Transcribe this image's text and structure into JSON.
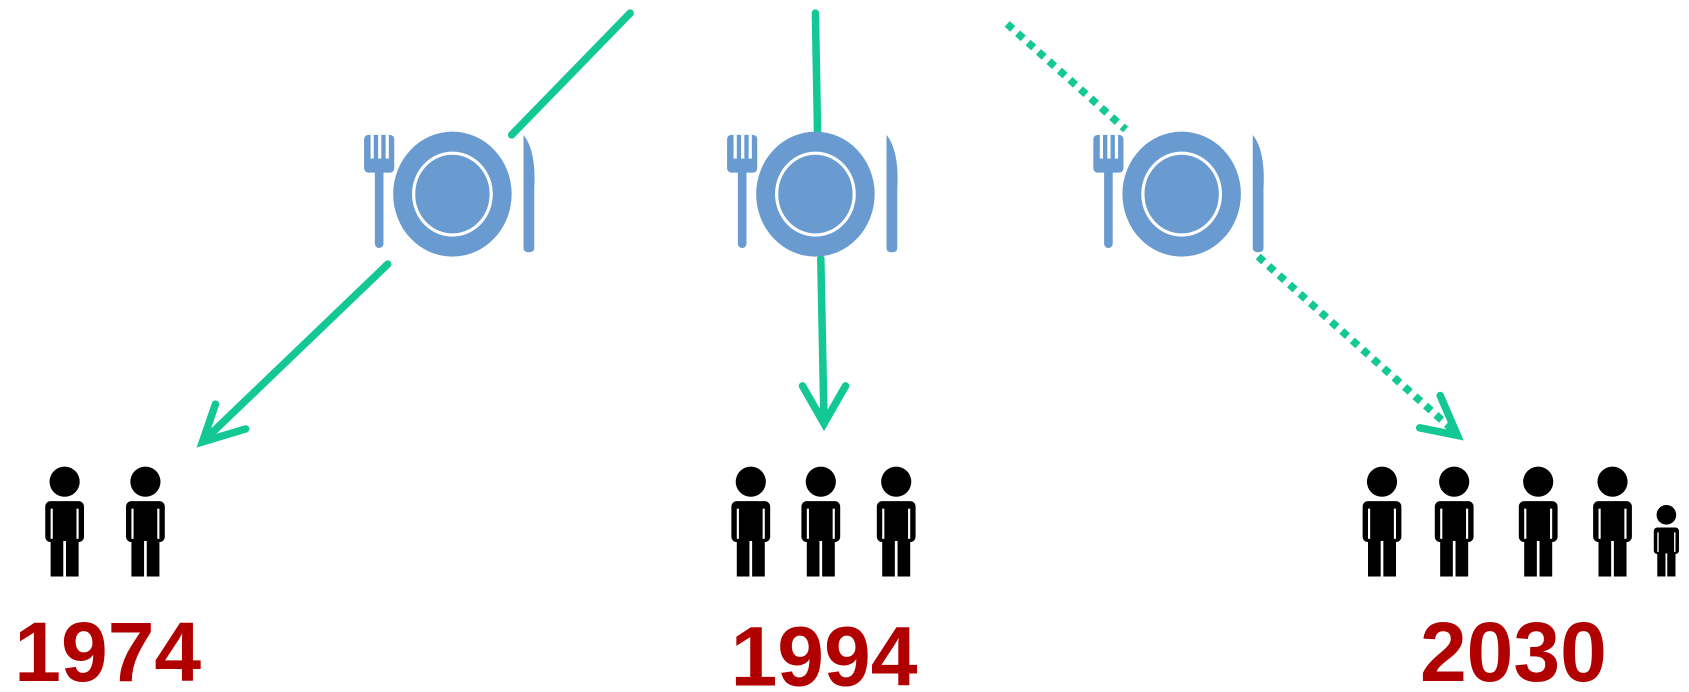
{
  "labels": [
    "1974",
    "1994",
    "2030"
  ]
}
